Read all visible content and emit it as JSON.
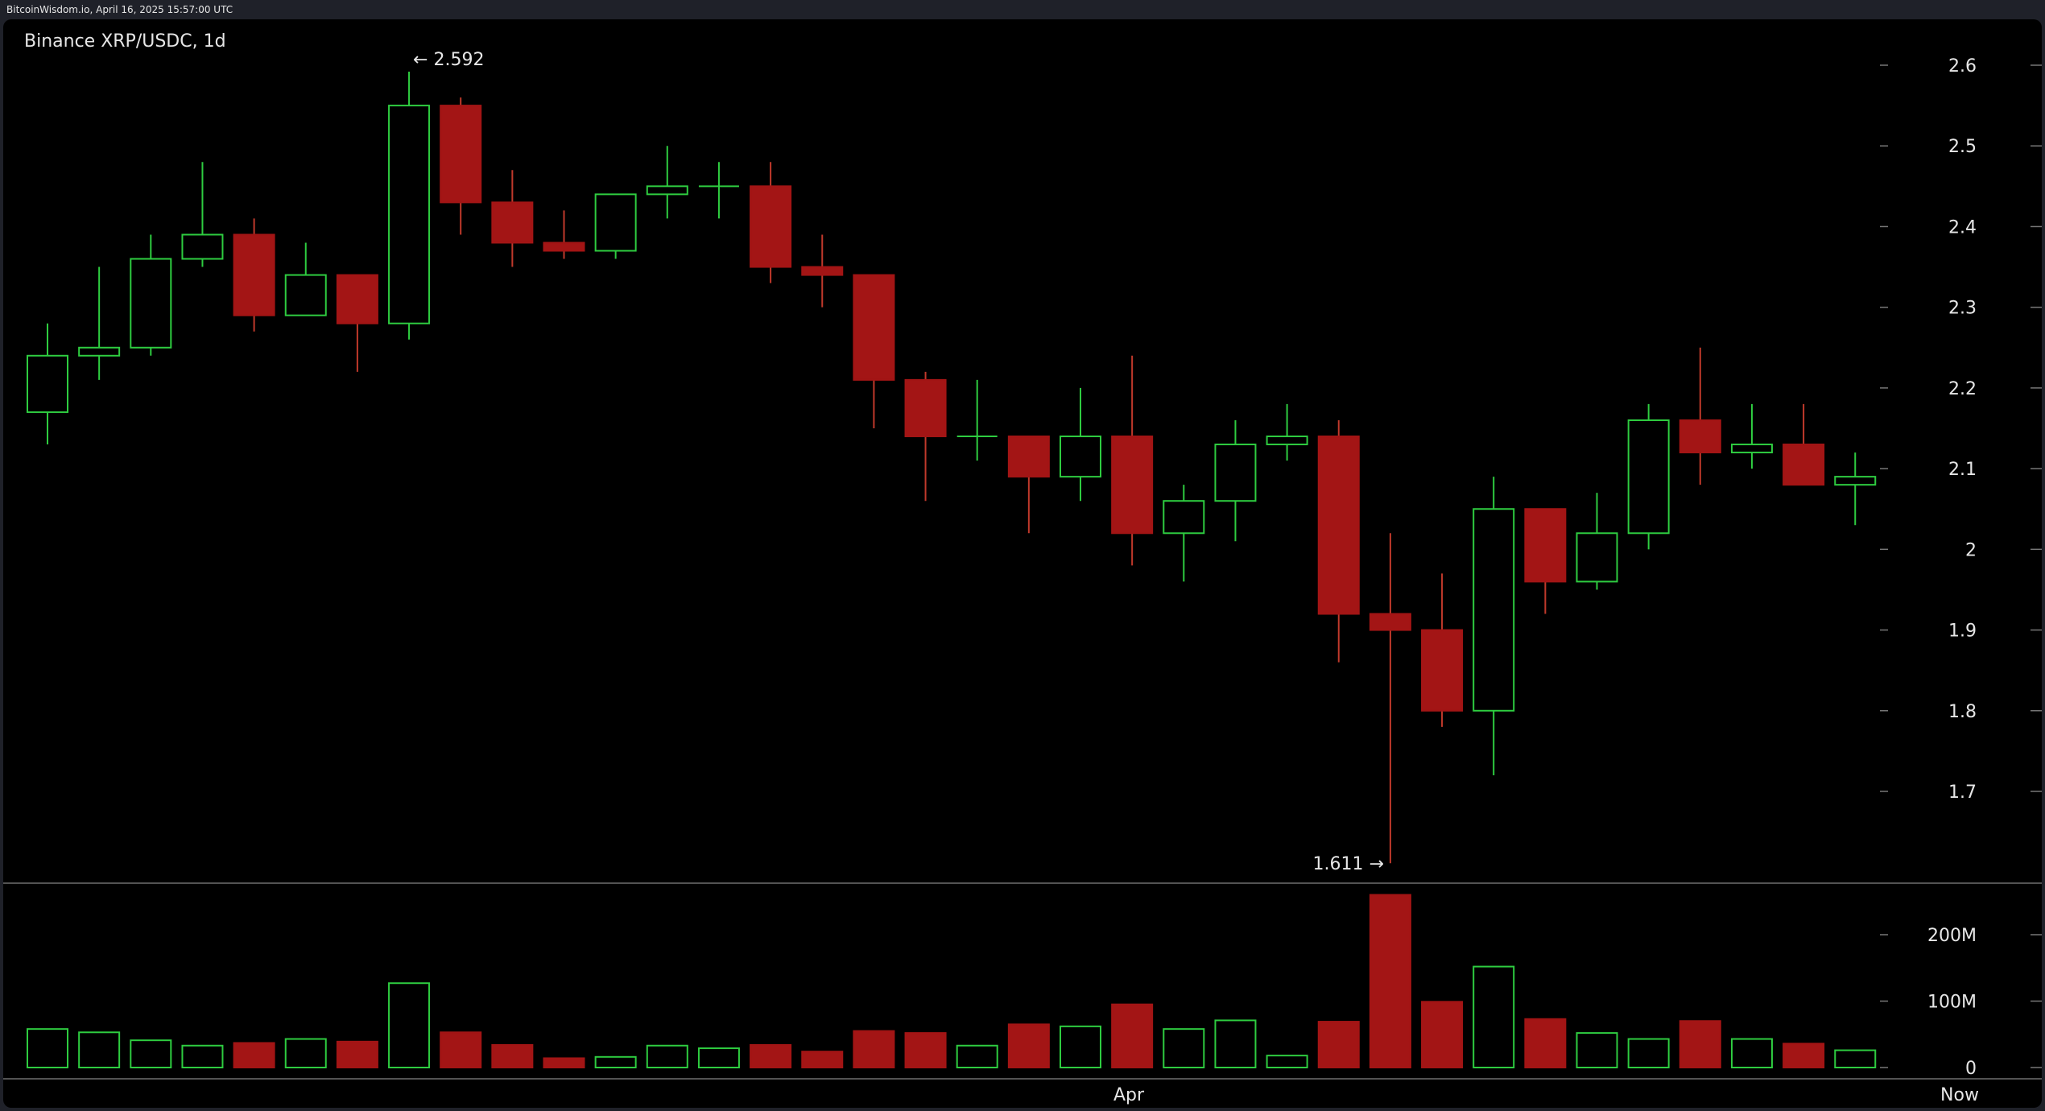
{
  "header": {
    "source_line": "BitcoinWisdom.io, April 16, 2025 15:57:00 UTC"
  },
  "chart_data": {
    "type": "candlestick",
    "title": "Binance XRP/USDC, 1d",
    "colors": {
      "up": "#2ecc40",
      "down": "#a31515",
      "background": "#000000",
      "text": "#e6e6e6"
    },
    "price_axis": {
      "ticks": [
        "2.6",
        "2.5",
        "2.4",
        "2.3",
        "2.2",
        "2.1",
        "2",
        "1.9",
        "1.8",
        "1.7"
      ],
      "ylim": [
        1.6,
        2.65
      ]
    },
    "volume_axis": {
      "ticks": [
        "200M",
        "100M",
        "0"
      ],
      "ylim": [
        0,
        270000000
      ]
    },
    "x_axis": {
      "labels": [
        "Apr",
        "Now"
      ]
    },
    "annotations": {
      "high": "← 2.592",
      "low": "1.611 →"
    },
    "candles": [
      {
        "o": 2.17,
        "h": 2.28,
        "l": 2.13,
        "c": 2.24,
        "v": 58000000
      },
      {
        "o": 2.24,
        "h": 2.35,
        "l": 2.21,
        "c": 2.25,
        "v": 53000000
      },
      {
        "o": 2.25,
        "h": 2.39,
        "l": 2.24,
        "c": 2.36,
        "v": 41000000
      },
      {
        "o": 2.36,
        "h": 2.48,
        "l": 2.35,
        "c": 2.39,
        "v": 33000000
      },
      {
        "o": 2.39,
        "h": 2.41,
        "l": 2.27,
        "c": 2.29,
        "v": 37000000
      },
      {
        "o": 2.29,
        "h": 2.38,
        "l": 2.29,
        "c": 2.34,
        "v": 43000000
      },
      {
        "o": 2.34,
        "h": 2.34,
        "l": 2.22,
        "c": 2.28,
        "v": 39000000
      },
      {
        "o": 2.28,
        "h": 2.592,
        "l": 2.26,
        "c": 2.55,
        "v": 127000000
      },
      {
        "o": 2.55,
        "h": 2.56,
        "l": 2.39,
        "c": 2.43,
        "v": 53000000
      },
      {
        "o": 2.43,
        "h": 2.47,
        "l": 2.35,
        "c": 2.38,
        "v": 34000000
      },
      {
        "o": 2.38,
        "h": 2.42,
        "l": 2.36,
        "c": 2.37,
        "v": 14000000
      },
      {
        "o": 2.37,
        "h": 2.44,
        "l": 2.36,
        "c": 2.44,
        "v": 16000000
      },
      {
        "o": 2.44,
        "h": 2.5,
        "l": 2.41,
        "c": 2.45,
        "v": 33000000
      },
      {
        "o": 2.45,
        "h": 2.48,
        "l": 2.41,
        "c": 2.45,
        "v": 29000000
      },
      {
        "o": 2.45,
        "h": 2.48,
        "l": 2.33,
        "c": 2.35,
        "v": 34000000
      },
      {
        "o": 2.35,
        "h": 2.39,
        "l": 2.3,
        "c": 2.34,
        "v": 24000000
      },
      {
        "o": 2.34,
        "h": 2.34,
        "l": 2.15,
        "c": 2.21,
        "v": 55000000
      },
      {
        "o": 2.21,
        "h": 2.22,
        "l": 2.06,
        "c": 2.14,
        "v": 52000000
      },
      {
        "o": 2.14,
        "h": 2.21,
        "l": 2.11,
        "c": 2.14,
        "v": 33000000
      },
      {
        "o": 2.14,
        "h": 2.14,
        "l": 2.02,
        "c": 2.09,
        "v": 65000000
      },
      {
        "o": 2.09,
        "h": 2.2,
        "l": 2.06,
        "c": 2.14,
        "v": 62000000
      },
      {
        "o": 2.14,
        "h": 2.24,
        "l": 1.98,
        "c": 2.02,
        "v": 95000000
      },
      {
        "o": 2.02,
        "h": 2.08,
        "l": 1.96,
        "c": 2.06,
        "v": 58000000
      },
      {
        "o": 2.06,
        "h": 2.16,
        "l": 2.01,
        "c": 2.13,
        "v": 71000000
      },
      {
        "o": 2.13,
        "h": 2.18,
        "l": 2.11,
        "c": 2.14,
        "v": 18000000
      },
      {
        "o": 2.14,
        "h": 2.16,
        "l": 1.86,
        "c": 1.92,
        "v": 69000000
      },
      {
        "o": 1.92,
        "h": 2.02,
        "l": 1.611,
        "c": 1.9,
        "v": 260000000
      },
      {
        "o": 1.9,
        "h": 1.97,
        "l": 1.78,
        "c": 1.8,
        "v": 99000000
      },
      {
        "o": 1.8,
        "h": 2.09,
        "l": 1.72,
        "c": 2.05,
        "v": 152000000
      },
      {
        "o": 2.05,
        "h": 2.05,
        "l": 1.92,
        "c": 1.96,
        "v": 73000000
      },
      {
        "o": 1.96,
        "h": 2.07,
        "l": 1.95,
        "c": 2.02,
        "v": 52000000
      },
      {
        "o": 2.02,
        "h": 2.18,
        "l": 2.0,
        "c": 2.16,
        "v": 43000000
      },
      {
        "o": 2.16,
        "h": 2.25,
        "l": 2.08,
        "c": 2.12,
        "v": 70000000
      },
      {
        "o": 2.12,
        "h": 2.18,
        "l": 2.1,
        "c": 2.13,
        "v": 43000000
      },
      {
        "o": 2.13,
        "h": 2.18,
        "l": 2.08,
        "c": 2.08,
        "v": 36000000
      },
      {
        "o": 2.08,
        "h": 2.12,
        "l": 2.03,
        "c": 2.09,
        "v": 26000000
      }
    ]
  }
}
